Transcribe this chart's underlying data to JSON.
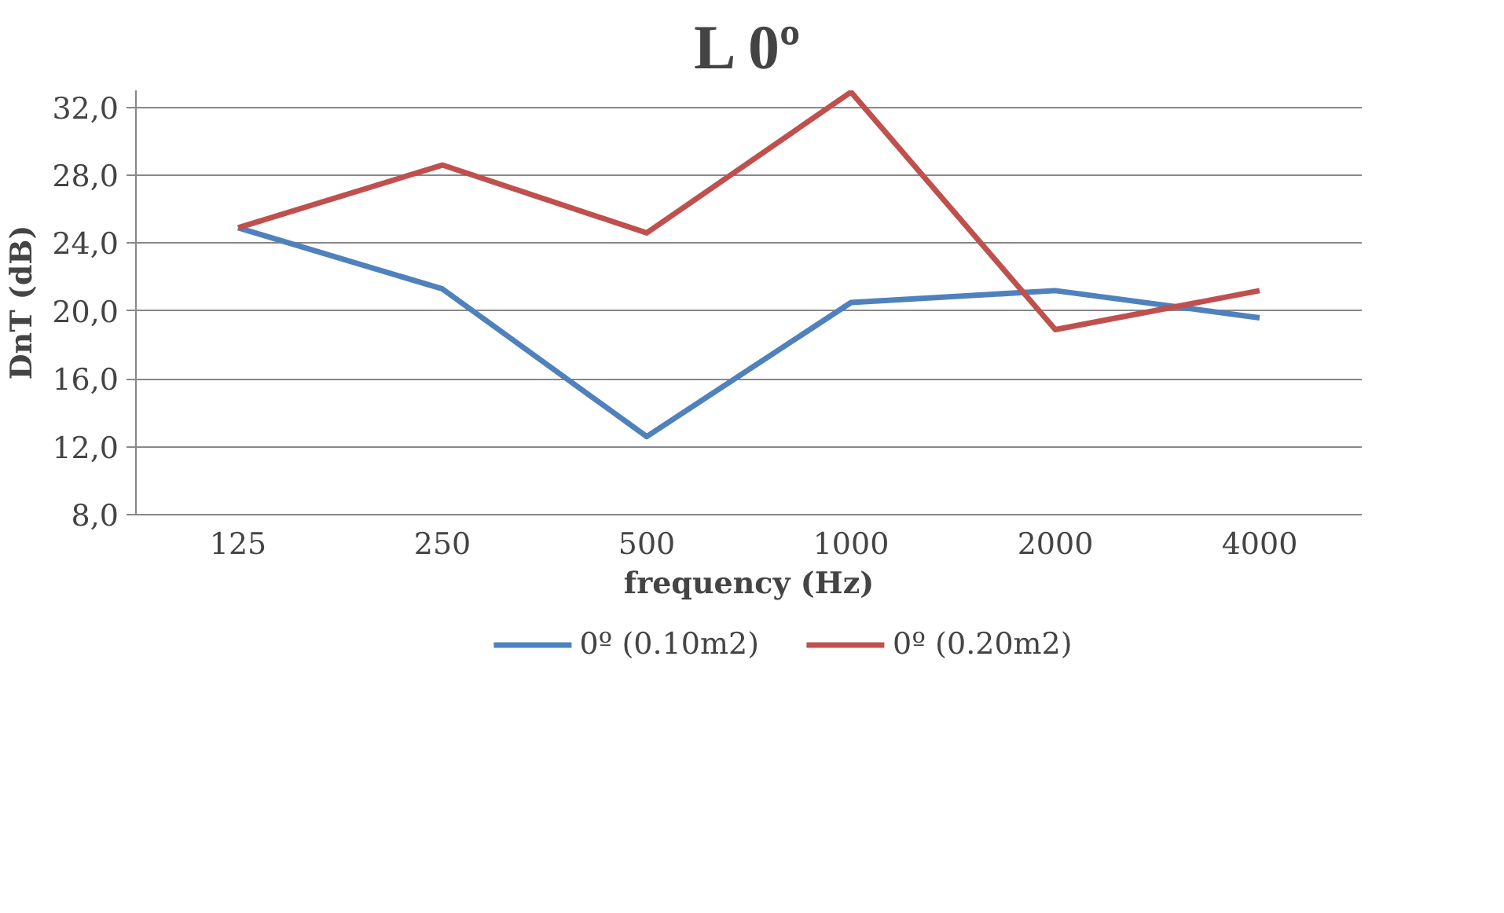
{
  "chart_data": {
    "type": "line",
    "title": "L 0º",
    "xlabel": "frequency (Hz)",
    "ylabel": "DnT (dB)",
    "categories": [
      "125",
      "250",
      "500",
      "1000",
      "2000",
      "4000"
    ],
    "series": [
      {
        "name": "0º (0.10m2)",
        "color": "#4f81bd",
        "values": [
          24.9,
          21.3,
          12.6,
          20.5,
          21.2,
          19.6
        ]
      },
      {
        "name": "0º (0.20m2)",
        "color": "#c0504d",
        "values": [
          24.9,
          28.6,
          24.6,
          32.9,
          18.9,
          21.2
        ]
      }
    ],
    "ylim": [
      8,
      33
    ],
    "yticks": [
      {
        "value": 8,
        "label": "8,0"
      },
      {
        "value": 12,
        "label": "12,0"
      },
      {
        "value": 16,
        "label": "16,0"
      },
      {
        "value": 20,
        "label": "20,0"
      },
      {
        "value": 24,
        "label": "24,0"
      },
      {
        "value": 28,
        "label": "28,0"
      },
      {
        "value": 32,
        "label": "32,0"
      }
    ],
    "grid": "y",
    "legend": "bottom",
    "marker": "none",
    "line_style": "solid"
  }
}
